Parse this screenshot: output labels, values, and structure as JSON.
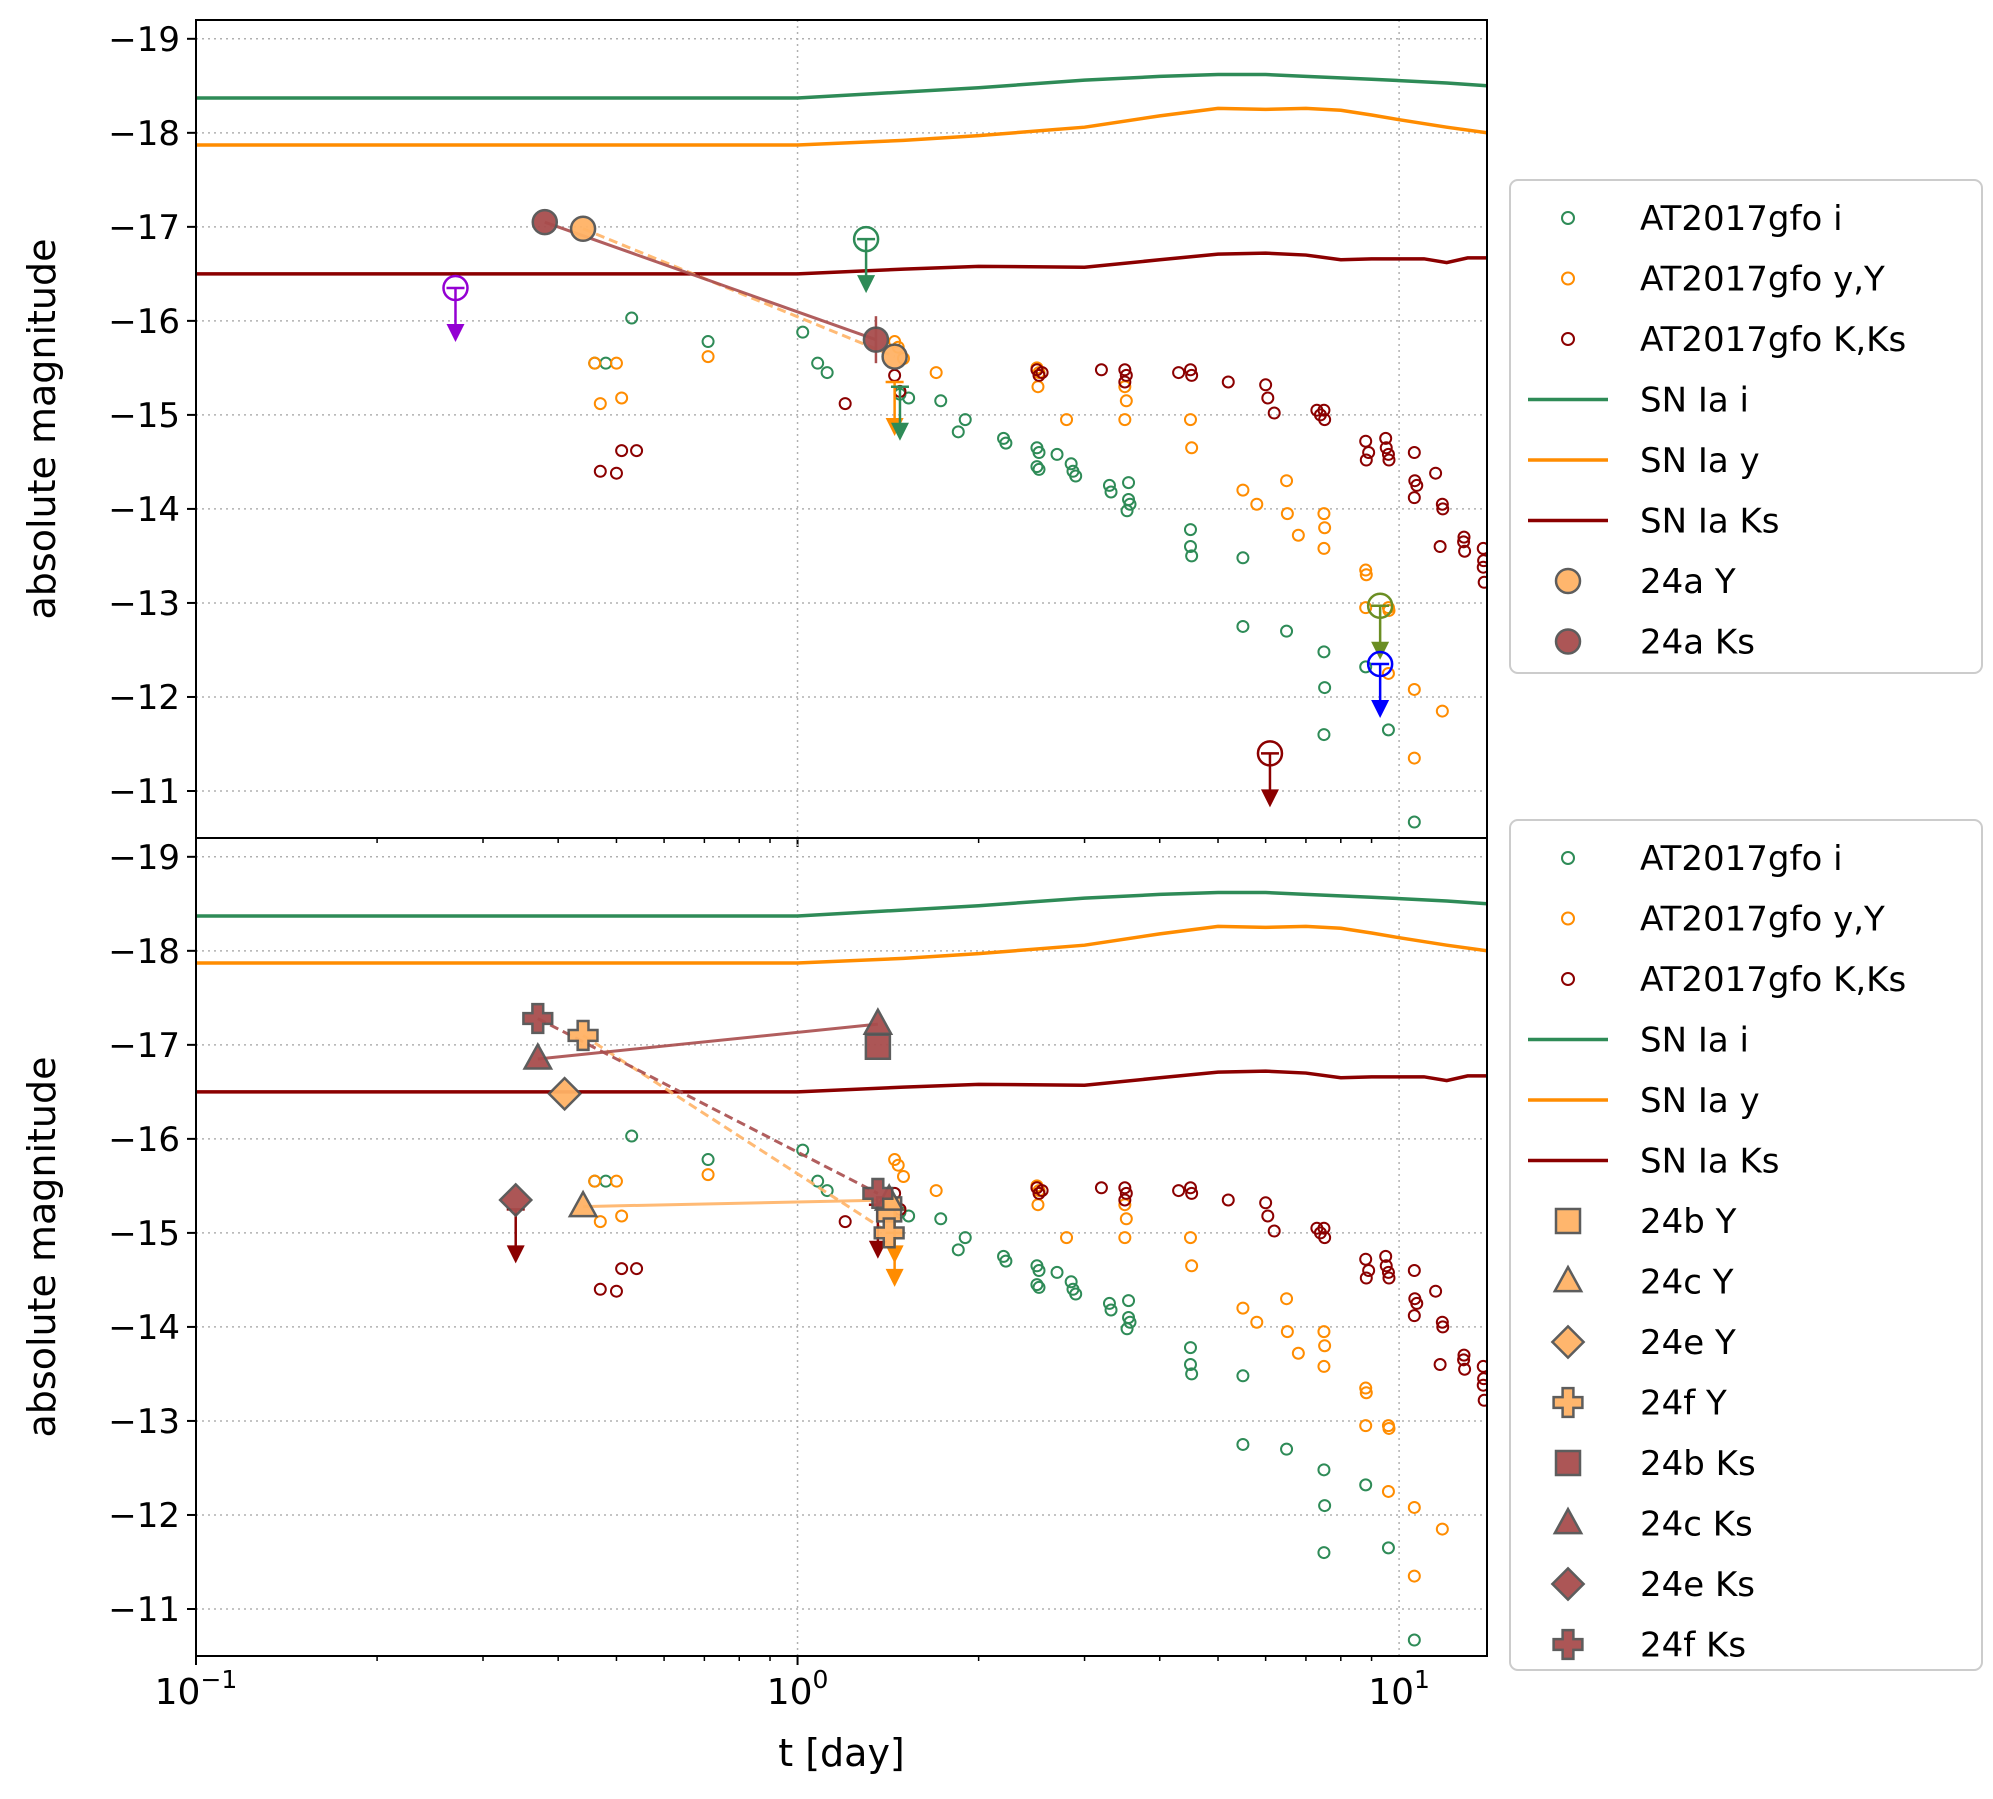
{
  "colors": {
    "i": "#2e8b57",
    "y": "#ff8c00",
    "ks": "#8b0000",
    "y_event": "#ffb366",
    "ks_event": "#a84d4d",
    "grid": "#b0b0b0",
    "legend_border": "#cccccc",
    "extra_purple": "#9400d3",
    "extra_olive": "#6b8e23",
    "extra_blue": "#0000ff"
  },
  "chart_data": [
    {
      "type": "scatter",
      "panel": "top",
      "title": "",
      "xlabel": "t [day]",
      "ylabel": "absolute magnitude",
      "xscale": "log",
      "xlim": [
        0.1,
        14
      ],
      "ylim": [
        -19.2,
        -10.5
      ],
      "y_inverted": true,
      "yticks": [
        -19,
        -18,
        -17,
        -16,
        -15,
        -14,
        -13,
        -12,
        -11
      ],
      "ytick_labels": [
        "−19",
        "−18",
        "−17",
        "−16",
        "−15",
        "−14",
        "−13",
        "−12",
        "−11"
      ],
      "xticks": [
        0.1,
        1,
        10
      ],
      "grid": true,
      "legend_position": "right",
      "legend": [
        {
          "label": "AT2017gfo i",
          "style": "open-circle",
          "color": "#2e8b57"
        },
        {
          "label": "AT2017gfo y,Y",
          "style": "open-circle",
          "color": "#ff8c00"
        },
        {
          "label": "AT2017gfo K,Ks",
          "style": "open-circle",
          "color": "#8b0000"
        },
        {
          "label": "SN Ia i",
          "style": "line",
          "color": "#2e8b57"
        },
        {
          "label": "SN Ia y",
          "style": "line",
          "color": "#ff8c00"
        },
        {
          "label": "SN Ia Ks",
          "style": "line",
          "color": "#8b0000"
        },
        {
          "label": "24a Y",
          "style": "circle",
          "color": "#ffb366"
        },
        {
          "label": "24a Ks",
          "style": "circle",
          "color": "#a84d4d"
        }
      ],
      "events": [
        {
          "name": "24a Y",
          "marker": "circle",
          "color": "#ffb366",
          "points": [
            [
              0.44,
              -16.98
            ],
            [
              1.45,
              -15.62
            ]
          ],
          "line": "dashed"
        },
        {
          "name": "24a Ks",
          "marker": "circle",
          "color": "#a84d4d",
          "points": [
            [
              0.38,
              -17.05
            ],
            [
              1.35,
              -15.8
            ]
          ],
          "line": "solid",
          "errorbar": [
            [
              1.35,
              -16.05,
              -15.55
            ]
          ]
        }
      ],
      "event_upper_limits": [
        {
          "t": 1.45,
          "mag": -15.35,
          "color": "#ff8c00",
          "hollow": false
        },
        {
          "t": 1.48,
          "mag": -15.3,
          "color": "#2e8b57",
          "hollow": false
        }
      ],
      "extra_upper_limits": [
        {
          "t": 0.27,
          "mag": -16.35,
          "color": "#9400d3"
        },
        {
          "t": 1.3,
          "mag": -16.87,
          "color": "#2e8b57"
        },
        {
          "t": 6.1,
          "mag": -11.4,
          "color": "#8b0000"
        },
        {
          "t": 9.3,
          "mag": -12.97,
          "color": "#6b8e23"
        },
        {
          "t": 9.3,
          "mag": -12.35,
          "color": "#0000ff"
        }
      ]
    },
    {
      "type": "scatter",
      "panel": "bottom",
      "title": "",
      "xlabel": "t [day]",
      "ylabel": "absolute magnitude",
      "xscale": "log",
      "xlim": [
        0.1,
        14
      ],
      "ylim": [
        -19.2,
        -10.5
      ],
      "y_inverted": true,
      "yticks": [
        -19,
        -18,
        -17,
        -16,
        -15,
        -14,
        -13,
        -12,
        -11
      ],
      "ytick_labels": [
        "−19",
        "−18",
        "−17",
        "−16",
        "−15",
        "−14",
        "−13",
        "−12",
        "−11"
      ],
      "xticks": [
        0.1,
        1,
        10
      ],
      "xtick_labels": [
        {
          "base": "10",
          "exp": "−1"
        },
        {
          "base": "10",
          "exp": "0"
        },
        {
          "base": "10",
          "exp": "1"
        }
      ],
      "grid": true,
      "legend_position": "right",
      "legend": [
        {
          "label": "AT2017gfo i",
          "style": "open-circle",
          "color": "#2e8b57"
        },
        {
          "label": "AT2017gfo y,Y",
          "style": "open-circle",
          "color": "#ff8c00"
        },
        {
          "label": "AT2017gfo K,Ks",
          "style": "open-circle",
          "color": "#8b0000"
        },
        {
          "label": "SN Ia i",
          "style": "line",
          "color": "#2e8b57"
        },
        {
          "label": "SN Ia y",
          "style": "line",
          "color": "#ff8c00"
        },
        {
          "label": "SN Ia Ks",
          "style": "line",
          "color": "#8b0000"
        },
        {
          "label": "24b Y",
          "style": "square",
          "color": "#ffb366"
        },
        {
          "label": "24c Y",
          "style": "triangle",
          "color": "#ffb366"
        },
        {
          "label": "24e Y",
          "style": "diamond",
          "color": "#ffb366"
        },
        {
          "label": "24f Y",
          "style": "plus",
          "color": "#ffb366"
        },
        {
          "label": "24b Ks",
          "style": "square",
          "color": "#a84d4d"
        },
        {
          "label": "24c Ks",
          "style": "triangle",
          "color": "#a84d4d"
        },
        {
          "label": "24e Ks",
          "style": "diamond",
          "color": "#a84d4d"
        },
        {
          "label": "24f Ks",
          "style": "plus",
          "color": "#a84d4d"
        }
      ],
      "events": [
        {
          "name": "24b Y",
          "marker": "square",
          "color": "#ffb366",
          "points": [
            [
              1.42,
              -15.25
            ]
          ],
          "line": "none"
        },
        {
          "name": "24c Y",
          "marker": "triangle",
          "color": "#ffb366",
          "points": [
            [
              0.44,
              -15.28
            ],
            [
              1.42,
              -15.35
            ]
          ],
          "line": "solid"
        },
        {
          "name": "24e Y",
          "marker": "diamond",
          "color": "#ffb366",
          "points": [
            [
              0.41,
              -16.48
            ]
          ],
          "line": "none"
        },
        {
          "name": "24f Y",
          "marker": "plus",
          "color": "#ffb366",
          "points": [
            [
              0.44,
              -17.1
            ],
            [
              1.42,
              -15.0
            ]
          ],
          "line": "dashed"
        },
        {
          "name": "24b Ks",
          "marker": "square",
          "color": "#a84d4d",
          "points": [
            [
              1.36,
              -16.98
            ]
          ],
          "line": "none"
        },
        {
          "name": "24c Ks",
          "marker": "triangle",
          "color": "#a84d4d",
          "points": [
            [
              0.37,
              -16.85
            ],
            [
              1.36,
              -17.22
            ]
          ],
          "line": "solid"
        },
        {
          "name": "24e Ks",
          "marker": "diamond",
          "color": "#a84d4d",
          "points": [
            [
              0.34,
              -15.35
            ]
          ],
          "line": "none"
        },
        {
          "name": "24f Ks",
          "marker": "plus",
          "color": "#a84d4d",
          "points": [
            [
              0.37,
              -17.28
            ],
            [
              1.36,
              -15.42
            ]
          ],
          "line": "dashed"
        }
      ],
      "event_upper_limits": [
        {
          "t": 0.34,
          "mag": -15.25,
          "color": "#8b0000",
          "hollow": false
        },
        {
          "t": 1.36,
          "mag": -15.3,
          "color": "#8b0000",
          "hollow": false
        },
        {
          "t": 1.45,
          "mag": -15.0,
          "color": "#ff8c00",
          "hollow": false
        },
        {
          "t": 1.45,
          "mag": -15.25,
          "color": "#ff8c00",
          "hollow": false
        }
      ],
      "extra_upper_limits": []
    }
  ],
  "shared_series": {
    "sn_ia": [
      {
        "name": "SN Ia i",
        "color": "#2e8b57",
        "points": [
          [
            0.1,
            -18.37
          ],
          [
            1.0,
            -18.37
          ],
          [
            2.0,
            -18.48
          ],
          [
            3.0,
            -18.56
          ],
          [
            4.0,
            -18.6
          ],
          [
            5.0,
            -18.62
          ],
          [
            6.0,
            -18.62
          ],
          [
            7.0,
            -18.6
          ],
          [
            9.0,
            -18.57
          ],
          [
            12.0,
            -18.53
          ],
          [
            14.0,
            -18.5
          ]
        ]
      },
      {
        "name": "SN Ia y",
        "color": "#ff8c00",
        "points": [
          [
            0.1,
            -17.87
          ],
          [
            1.0,
            -17.87
          ],
          [
            1.5,
            -17.92
          ],
          [
            2.0,
            -17.97
          ],
          [
            3.0,
            -18.06
          ],
          [
            4.0,
            -18.18
          ],
          [
            5.0,
            -18.26
          ],
          [
            6.0,
            -18.25
          ],
          [
            7.0,
            -18.26
          ],
          [
            8.0,
            -18.24
          ],
          [
            9.0,
            -18.19
          ],
          [
            10.0,
            -18.14
          ],
          [
            12.0,
            -18.06
          ],
          [
            14.0,
            -18.0
          ]
        ]
      },
      {
        "name": "SN Ia Ks",
        "color": "#8b0000",
        "points": [
          [
            0.1,
            -16.5
          ],
          [
            1.0,
            -16.5
          ],
          [
            1.5,
            -16.55
          ],
          [
            2.0,
            -16.58
          ],
          [
            3.0,
            -16.57
          ],
          [
            4.0,
            -16.65
          ],
          [
            5.0,
            -16.71
          ],
          [
            6.0,
            -16.72
          ],
          [
            7.0,
            -16.7
          ],
          [
            8.0,
            -16.65
          ],
          [
            9.0,
            -16.66
          ],
          [
            11.0,
            -16.66
          ],
          [
            12.0,
            -16.62
          ],
          [
            13.0,
            -16.67
          ],
          [
            14.0,
            -16.67
          ]
        ]
      }
    ],
    "at2017gfo": [
      {
        "name": "AT2017gfo i",
        "color": "#2e8b57",
        "points": [
          [
            0.46,
            -15.55
          ],
          [
            0.48,
            -15.55
          ],
          [
            0.53,
            -16.03
          ],
          [
            0.71,
            -15.78
          ],
          [
            1.02,
            -15.88
          ],
          [
            1.08,
            -15.55
          ],
          [
            1.12,
            -15.45
          ],
          [
            1.48,
            -15.22
          ],
          [
            1.53,
            -15.18
          ],
          [
            1.73,
            -15.15
          ],
          [
            1.85,
            -14.82
          ],
          [
            1.9,
            -14.95
          ],
          [
            2.2,
            -14.75
          ],
          [
            2.22,
            -14.7
          ],
          [
            2.5,
            -14.65
          ],
          [
            2.52,
            -14.6
          ],
          [
            2.5,
            -14.45
          ],
          [
            2.52,
            -14.42
          ],
          [
            2.7,
            -14.58
          ],
          [
            2.85,
            -14.48
          ],
          [
            2.87,
            -14.4
          ],
          [
            2.9,
            -14.35
          ],
          [
            3.3,
            -14.25
          ],
          [
            3.32,
            -14.18
          ],
          [
            3.55,
            -14.28
          ],
          [
            3.55,
            -14.1
          ],
          [
            3.57,
            -14.05
          ],
          [
            3.53,
            -13.98
          ],
          [
            4.5,
            -13.78
          ],
          [
            4.5,
            -13.6
          ],
          [
            4.52,
            -13.5
          ],
          [
            5.5,
            -13.48
          ],
          [
            5.5,
            -12.75
          ],
          [
            6.5,
            -12.7
          ],
          [
            7.5,
            -12.48
          ],
          [
            7.52,
            -12.1
          ],
          [
            7.5,
            -11.6
          ],
          [
            8.8,
            -12.32
          ],
          [
            9.6,
            -11.65
          ],
          [
            10.6,
            -10.67
          ]
        ]
      },
      {
        "name": "AT2017gfo y,Y",
        "color": "#ff8c00",
        "points": [
          [
            0.46,
            -15.55
          ],
          [
            0.47,
            -15.12
          ],
          [
            0.5,
            -15.55
          ],
          [
            0.51,
            -15.18
          ],
          [
            0.71,
            -15.62
          ],
          [
            1.45,
            -15.78
          ],
          [
            1.47,
            -15.72
          ],
          [
            1.5,
            -15.6
          ],
          [
            1.7,
            -15.45
          ],
          [
            2.5,
            -15.5
          ],
          [
            2.52,
            -15.45
          ],
          [
            2.51,
            -15.3
          ],
          [
            2.8,
            -14.95
          ],
          [
            3.5,
            -15.3
          ],
          [
            3.52,
            -15.15
          ],
          [
            3.5,
            -14.95
          ],
          [
            4.5,
            -14.95
          ],
          [
            4.52,
            -14.65
          ],
          [
            5.5,
            -14.2
          ],
          [
            5.8,
            -14.05
          ],
          [
            6.5,
            -14.3
          ],
          [
            6.52,
            -13.95
          ],
          [
            6.8,
            -13.72
          ],
          [
            7.5,
            -13.95
          ],
          [
            7.52,
            -13.8
          ],
          [
            7.5,
            -13.58
          ],
          [
            8.8,
            -13.35
          ],
          [
            8.82,
            -13.3
          ],
          [
            8.8,
            -12.95
          ],
          [
            9.6,
            -12.95
          ],
          [
            9.62,
            -12.92
          ],
          [
            9.6,
            -12.25
          ],
          [
            10.6,
            -12.08
          ],
          [
            10.6,
            -11.35
          ],
          [
            11.8,
            -11.85
          ]
        ]
      },
      {
        "name": "AT2017gfo K,Ks",
        "color": "#8b0000",
        "points": [
          [
            0.47,
            -14.4
          ],
          [
            0.5,
            -14.38
          ],
          [
            0.51,
            -14.62
          ],
          [
            0.54,
            -14.62
          ],
          [
            1.2,
            -15.12
          ],
          [
            1.45,
            -15.42
          ],
          [
            1.48,
            -15.25
          ],
          [
            2.5,
            -15.48
          ],
          [
            2.52,
            -15.42
          ],
          [
            2.55,
            -15.45
          ],
          [
            3.2,
            -15.48
          ],
          [
            3.5,
            -15.48
          ],
          [
            3.52,
            -15.42
          ],
          [
            3.5,
            -15.35
          ],
          [
            4.3,
            -15.45
          ],
          [
            4.5,
            -15.48
          ],
          [
            4.52,
            -15.42
          ],
          [
            5.2,
            -15.35
          ],
          [
            6.0,
            -15.32
          ],
          [
            6.05,
            -15.18
          ],
          [
            6.2,
            -15.02
          ],
          [
            7.3,
            -15.05
          ],
          [
            7.4,
            -15.0
          ],
          [
            7.5,
            -15.05
          ],
          [
            7.52,
            -14.95
          ],
          [
            8.8,
            -14.72
          ],
          [
            8.9,
            -14.6
          ],
          [
            8.82,
            -14.52
          ],
          [
            9.5,
            -14.75
          ],
          [
            9.52,
            -14.65
          ],
          [
            9.6,
            -14.58
          ],
          [
            9.62,
            -14.52
          ],
          [
            10.6,
            -14.6
          ],
          [
            10.62,
            -14.3
          ],
          [
            10.7,
            -14.25
          ],
          [
            10.6,
            -14.12
          ],
          [
            11.5,
            -14.38
          ],
          [
            11.8,
            -14.05
          ],
          [
            11.82,
            -14.0
          ],
          [
            11.7,
            -13.6
          ],
          [
            12.8,
            -13.65
          ],
          [
            12.82,
            -13.7
          ],
          [
            12.85,
            -13.55
          ],
          [
            13.8,
            -13.58
          ],
          [
            13.82,
            -13.45
          ],
          [
            13.8,
            -13.38
          ],
          [
            13.85,
            -13.22
          ]
        ]
      }
    ]
  }
}
